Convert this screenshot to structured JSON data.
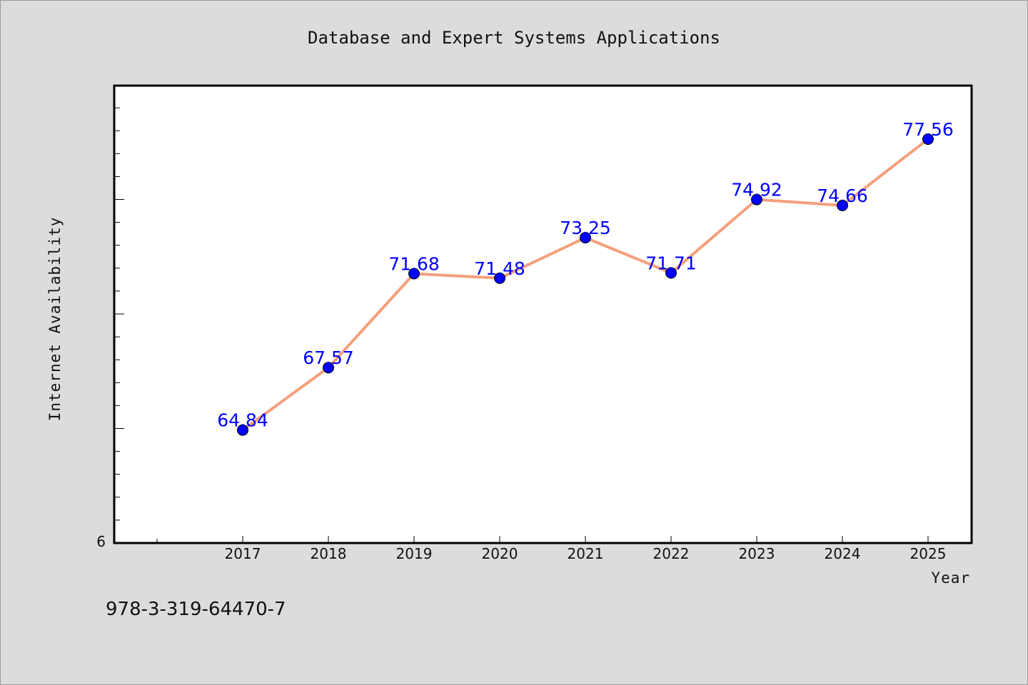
{
  "footer": {
    "isbn": "978-3-319-64470-7"
  },
  "colors": {
    "line": "#f4a07c",
    "marker": "#0000ff",
    "label": "#0000ff",
    "background": "#dcdcdc",
    "plot_background": "#ffffff"
  },
  "chart_data": {
    "type": "line",
    "title": "Database and Expert Systems Applications",
    "xlabel": "Year",
    "ylabel": "Internet Availability",
    "categories": [
      "2017",
      "2018",
      "2019",
      "2020",
      "2021",
      "2022",
      "2023",
      "2024",
      "2025"
    ],
    "series": [
      {
        "values": [
          64.84,
          67.57,
          71.68,
          71.48,
          73.25,
          71.71,
          74.92,
          74.66,
          77.56
        ]
      }
    ],
    "data_labels": [
      "64.84",
      "67.57",
      "71.68",
      "71.48",
      "73.25",
      "71.71",
      "74.92",
      "74.66",
      "77.56"
    ],
    "y_tick_label": "6",
    "ylim": [
      59.9,
      79.9
    ],
    "grid": false,
    "legend": "none"
  }
}
